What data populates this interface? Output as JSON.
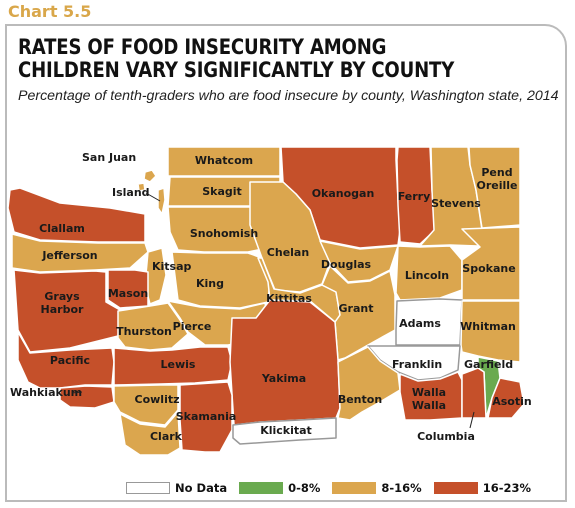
{
  "figure": {
    "chart_label": "Chart 5.5",
    "title": "RATES OF FOOD INSECURITY AMONG CHILDREN VARY SIGNIFICANTLY BY COUNTY",
    "subtitle": "Percentage of tenth-graders who are food insecure by county, Washington state, 2014"
  },
  "colors": {
    "no_data": "#ffffff",
    "low": "#6aaa4f",
    "mid": "#dba64e",
    "high": "#c5502a",
    "border": "#ffffff",
    "outline": "#999999"
  },
  "legend": [
    {
      "label": "No Data",
      "category": "no_data"
    },
    {
      "label": "0-8%",
      "category": "low"
    },
    {
      "label": "8-16%",
      "category": "mid"
    },
    {
      "label": "16-23%",
      "category": "high"
    }
  ],
  "counties": [
    {
      "name": "San Juan",
      "category": "mid"
    },
    {
      "name": "Whatcom",
      "category": "mid"
    },
    {
      "name": "Okanogan",
      "category": "high"
    },
    {
      "name": "Ferry",
      "category": "high"
    },
    {
      "name": "Stevens",
      "category": "mid"
    },
    {
      "name": "Pend Oreille",
      "category": "mid"
    },
    {
      "name": "Island",
      "category": "mid"
    },
    {
      "name": "Skagit",
      "category": "mid"
    },
    {
      "name": "Clallam",
      "category": "high"
    },
    {
      "name": "Snohomish",
      "category": "mid"
    },
    {
      "name": "Jefferson",
      "category": "mid"
    },
    {
      "name": "Chelan",
      "category": "mid"
    },
    {
      "name": "Douglas",
      "category": "mid"
    },
    {
      "name": "Lincoln",
      "category": "mid"
    },
    {
      "name": "Spokane",
      "category": "mid"
    },
    {
      "name": "Kitsap",
      "category": "mid"
    },
    {
      "name": "Mason",
      "category": "high"
    },
    {
      "name": "King",
      "category": "mid"
    },
    {
      "name": "Grays Harbor",
      "category": "high"
    },
    {
      "name": "Kittitas",
      "category": "mid"
    },
    {
      "name": "Grant",
      "category": "mid"
    },
    {
      "name": "Adams",
      "category": "no_data"
    },
    {
      "name": "Whitman",
      "category": "mid"
    },
    {
      "name": "Thurston",
      "category": "mid"
    },
    {
      "name": "Pierce",
      "category": "mid"
    },
    {
      "name": "Pacific",
      "category": "high"
    },
    {
      "name": "Lewis",
      "category": "high"
    },
    {
      "name": "Franklin",
      "category": "no_data"
    },
    {
      "name": "Garfield",
      "category": "low"
    },
    {
      "name": "Yakima",
      "category": "high"
    },
    {
      "name": "Wahkiakum",
      "category": "high"
    },
    {
      "name": "Cowlitz",
      "category": "mid"
    },
    {
      "name": "Benton",
      "category": "mid"
    },
    {
      "name": "Walla Walla",
      "category": "high"
    },
    {
      "name": "Asotin",
      "category": "high"
    },
    {
      "name": "Skamania",
      "category": "high"
    },
    {
      "name": "Columbia",
      "category": "high"
    },
    {
      "name": "Clark",
      "category": "mid"
    },
    {
      "name": "Klickitat",
      "category": "no_data"
    }
  ]
}
